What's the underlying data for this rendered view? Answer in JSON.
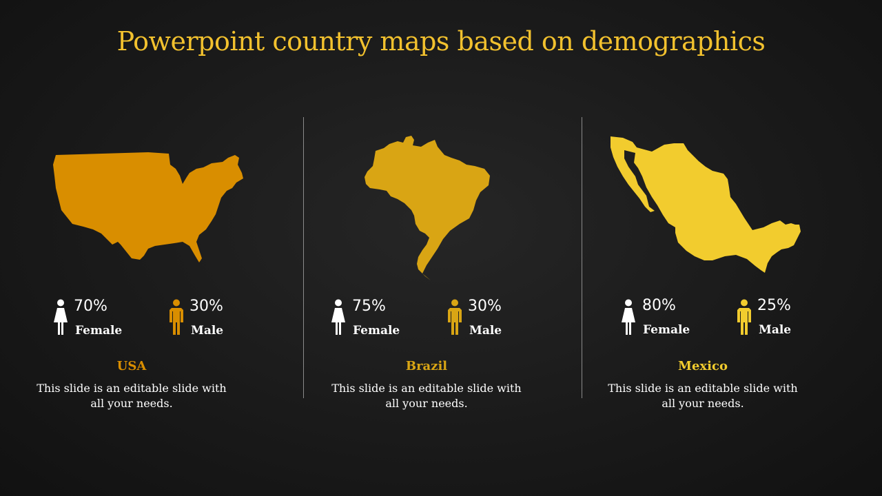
{
  "title": "Powerpoint country maps based on demographics",
  "colors": {
    "title": "#f2c12e",
    "usa": "#d98e00",
    "brazil": "#d9a514",
    "mexico": "#f2cc2e",
    "female_icon": "#ffffff"
  },
  "countries": [
    {
      "name": "USA",
      "female_pct": "70%",
      "female_label": "Female",
      "male_pct": "30%",
      "male_label": "Male",
      "description": "This slide is an editable slide with all your needs."
    },
    {
      "name": "Brazil",
      "female_pct": "75%",
      "female_label": "Female",
      "male_pct": "30%",
      "male_label": "Male",
      "description": "This slide is an editable slide with all your needs."
    },
    {
      "name": "Mexico",
      "female_pct": "80%",
      "female_label": "Female",
      "male_pct": "25%",
      "male_label": "Male",
      "description": "This slide is an editable slide with all your needs."
    }
  ]
}
